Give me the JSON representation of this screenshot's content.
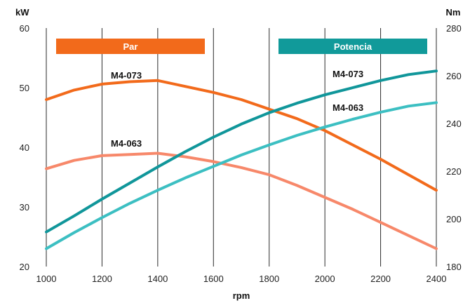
{
  "chart_data": {
    "type": "line",
    "xlabel": "rpm",
    "x": [
      1000,
      1100,
      1200,
      1300,
      1400,
      1500,
      1600,
      1700,
      1800,
      1900,
      2000,
      2100,
      2200,
      2300,
      2400
    ],
    "x_ticks": [
      "1000",
      "1200",
      "1400",
      "1600",
      "1800",
      "2000",
      "2200",
      "2400"
    ],
    "xlim": [
      1000,
      2400
    ],
    "y_left": {
      "unit": "kW",
      "lim": [
        20,
        60
      ],
      "ticks": [
        "20",
        "30",
        "40",
        "50",
        "60"
      ]
    },
    "y_right": {
      "unit": "Nm",
      "lim": [
        180,
        280
      ],
      "ticks": [
        "180",
        "200",
        "220",
        "240",
        "260",
        "280"
      ]
    },
    "legend": [
      {
        "label": "Par",
        "color": "#f26a1b"
      },
      {
        "label": "Potencia",
        "color": "#119a9a"
      }
    ],
    "series": [
      {
        "name": "M4-073",
        "group": "Par",
        "axis": "right",
        "color": "#f26a1b",
        "values": [
          250,
          254,
          256.5,
          257.5,
          258,
          255.5,
          253,
          250,
          246,
          242,
          237,
          231,
          225,
          218.5,
          212
        ]
      },
      {
        "name": "M4-063",
        "group": "Par",
        "axis": "right",
        "color": "#f7886a",
        "values": [
          221,
          224.5,
          226.5,
          227,
          227.5,
          226,
          224,
          221.5,
          218.5,
          214,
          209,
          204,
          198.5,
          193,
          187.5
        ]
      },
      {
        "name": "M4-073",
        "group": "Potencia",
        "axis": "left",
        "color": "#10969a",
        "values": [
          25.8,
          28.5,
          31.3,
          34.0,
          36.7,
          39.3,
          41.7,
          43.9,
          45.8,
          47.4,
          48.8,
          50.0,
          51.2,
          52.2,
          52.8
        ]
      },
      {
        "name": "M4-063",
        "group": "Potencia",
        "axis": "left",
        "color": "#3cbfc2",
        "values": [
          23.0,
          25.7,
          28.2,
          30.6,
          32.8,
          34.9,
          36.8,
          38.7,
          40.4,
          42.0,
          43.4,
          44.7,
          45.9,
          46.9,
          47.5
        ]
      }
    ]
  }
}
